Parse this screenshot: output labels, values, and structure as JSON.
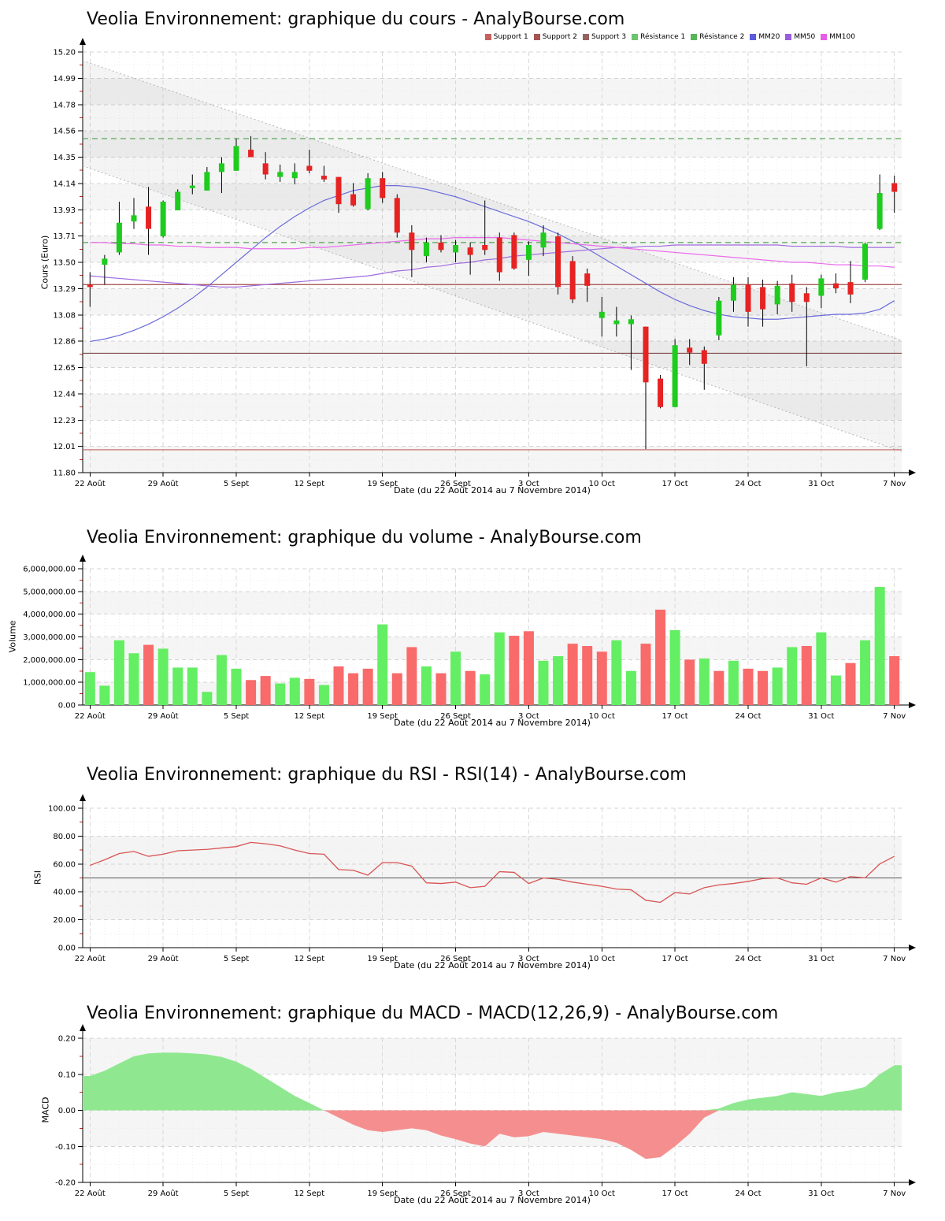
{
  "x_axis": {
    "label": "Date (du 22 Août 2014 au 7 Novembre 2014)",
    "tick_labels": [
      "22 Août",
      "29 Août",
      "5 Sept",
      "12 Sept",
      "19 Sept",
      "26 Sept",
      "3 Oct",
      "10 Oct",
      "17 Oct",
      "24 Oct",
      "31 Oct",
      "7 Nov"
    ],
    "tick_day_indices": [
      0,
      5,
      10,
      15,
      20,
      25,
      30,
      35,
      40,
      45,
      50,
      55
    ]
  },
  "chart_data": [
    {
      "type": "candlestick",
      "title": "Veolia Environnement: graphique du cours - AnalyBourse.com",
      "ylabel": "Cours (Euro)",
      "ylim": [
        11.8,
        15.2
      ],
      "y_tick_labels": [
        "15.20",
        "14.99",
        "14.78",
        "14.56",
        "14.35",
        "14.14",
        "13.93",
        "13.71",
        "13.50",
        "13.29",
        "13.08",
        "12.86",
        "12.65",
        "12.44",
        "12.23",
        "12.01",
        "11.80"
      ],
      "legend": [
        {
          "label": "Support 1",
          "color": "#c66060"
        },
        {
          "label": "Support 2",
          "color": "#a65454"
        },
        {
          "label": "Support 3",
          "color": "#966260"
        },
        {
          "label": "Résistance 1",
          "color": "#6cc56c"
        },
        {
          "label": "Résistance 2",
          "color": "#58b558"
        },
        {
          "label": "MM20",
          "color": "#5c5cdd"
        },
        {
          "label": "MM50",
          "color": "#9a5ce0"
        },
        {
          "label": "MM100",
          "color": "#e85ce8"
        }
      ],
      "dates": [
        "22/08",
        "25/08",
        "26/08",
        "27/08",
        "28/08",
        "29/08",
        "01/09",
        "02/09",
        "03/09",
        "04/09",
        "05/09",
        "08/09",
        "09/09",
        "10/09",
        "11/09",
        "12/09",
        "15/09",
        "16/09",
        "17/09",
        "18/09",
        "19/09",
        "22/09",
        "23/09",
        "24/09",
        "25/09",
        "26/09",
        "29/09",
        "30/09",
        "01/10",
        "02/10",
        "03/10",
        "06/10",
        "07/10",
        "08/10",
        "09/10",
        "10/10",
        "13/10",
        "14/10",
        "15/10",
        "16/10",
        "17/10",
        "20/10",
        "21/10",
        "22/10",
        "23/10",
        "24/10",
        "27/10",
        "28/10",
        "29/10",
        "30/10",
        "31/10",
        "03/11",
        "04/11",
        "05/11",
        "06/11",
        "07/11"
      ],
      "ohlc": [
        [
          13.32,
          13.42,
          13.14,
          13.3
        ],
        [
          13.48,
          13.56,
          13.32,
          13.53
        ],
        [
          13.58,
          13.99,
          13.56,
          13.82
        ],
        [
          13.83,
          14.02,
          13.77,
          13.88
        ],
        [
          13.95,
          14.11,
          13.56,
          13.77
        ],
        [
          13.71,
          14.0,
          13.7,
          13.99
        ],
        [
          13.92,
          14.09,
          13.92,
          14.07
        ],
        [
          14.1,
          14.21,
          14.05,
          14.12
        ],
        [
          14.08,
          14.27,
          14.08,
          14.23
        ],
        [
          14.23,
          14.35,
          14.06,
          14.3
        ],
        [
          14.24,
          14.5,
          14.24,
          14.44
        ],
        [
          14.41,
          14.52,
          14.35,
          14.35
        ],
        [
          14.3,
          14.39,
          14.17,
          14.21
        ],
        [
          14.19,
          14.29,
          14.15,
          14.23
        ],
        [
          14.18,
          14.3,
          14.13,
          14.23
        ],
        [
          14.28,
          14.41,
          14.22,
          14.24
        ],
        [
          14.2,
          14.28,
          14.15,
          14.17
        ],
        [
          14.19,
          14.19,
          13.9,
          13.97
        ],
        [
          14.05,
          14.14,
          13.95,
          13.96
        ],
        [
          13.93,
          14.22,
          13.92,
          14.18
        ],
        [
          14.18,
          14.23,
          13.98,
          14.02
        ],
        [
          14.02,
          14.05,
          13.7,
          13.74
        ],
        [
          13.74,
          13.8,
          13.38,
          13.6
        ],
        [
          13.55,
          13.7,
          13.5,
          13.66
        ],
        [
          13.66,
          13.72,
          13.58,
          13.6
        ],
        [
          13.58,
          13.68,
          13.5,
          13.64
        ],
        [
          13.62,
          13.66,
          13.4,
          13.56
        ],
        [
          13.64,
          14.0,
          13.56,
          13.6
        ],
        [
          13.7,
          13.74,
          13.35,
          13.42
        ],
        [
          13.72,
          13.74,
          13.44,
          13.45
        ],
        [
          13.52,
          13.67,
          13.39,
          13.64
        ],
        [
          13.62,
          13.8,
          13.55,
          13.74
        ],
        [
          13.71,
          13.74,
          13.24,
          13.3
        ],
        [
          13.51,
          13.55,
          13.17,
          13.2
        ],
        [
          13.41,
          13.45,
          13.18,
          13.31
        ],
        [
          13.05,
          13.22,
          12.9,
          13.1
        ],
        [
          13.0,
          13.14,
          12.9,
          13.03
        ],
        [
          13.0,
          13.07,
          12.63,
          13.04
        ],
        [
          12.98,
          12.98,
          11.99,
          12.53
        ],
        [
          12.56,
          12.59,
          12.32,
          12.33
        ],
        [
          12.33,
          12.88,
          12.33,
          12.83
        ],
        [
          12.81,
          12.88,
          12.67,
          12.77
        ],
        [
          12.79,
          12.82,
          12.47,
          12.68
        ],
        [
          12.91,
          13.22,
          12.87,
          13.19
        ],
        [
          13.19,
          13.38,
          13.1,
          13.32
        ],
        [
          13.32,
          13.38,
          12.98,
          13.1
        ],
        [
          13.3,
          13.36,
          12.98,
          13.12
        ],
        [
          13.16,
          13.35,
          13.08,
          13.31
        ],
        [
          13.33,
          13.4,
          13.1,
          13.18
        ],
        [
          13.25,
          13.3,
          12.66,
          13.18
        ],
        [
          13.23,
          13.4,
          13.13,
          13.37
        ],
        [
          13.33,
          13.41,
          13.25,
          13.29
        ],
        [
          13.34,
          13.51,
          13.17,
          13.24
        ],
        [
          13.36,
          13.66,
          13.34,
          13.65
        ],
        [
          13.77,
          14.21,
          13.76,
          14.06
        ],
        [
          14.14,
          14.2,
          13.9,
          14.07
        ]
      ],
      "mm20": [
        12.86,
        12.88,
        12.91,
        12.95,
        13.0,
        13.06,
        13.13,
        13.21,
        13.3,
        13.4,
        13.5,
        13.6,
        13.7,
        13.79,
        13.87,
        13.94,
        14.0,
        14.04,
        14.08,
        14.1,
        14.12,
        14.12,
        14.11,
        14.09,
        14.06,
        14.03,
        13.99,
        13.95,
        13.91,
        13.87,
        13.83,
        13.78,
        13.73,
        13.67,
        13.61,
        13.54,
        13.47,
        13.4,
        13.33,
        13.26,
        13.2,
        13.15,
        13.11,
        13.08,
        13.06,
        13.05,
        13.04,
        13.04,
        13.05,
        13.06,
        13.07,
        13.08,
        13.08,
        13.09,
        13.12,
        13.19
      ],
      "mm50": [
        13.39,
        13.38,
        13.37,
        13.36,
        13.35,
        13.34,
        13.33,
        13.32,
        13.31,
        13.3,
        13.3,
        13.31,
        13.32,
        13.33,
        13.34,
        13.35,
        13.36,
        13.37,
        13.38,
        13.39,
        13.41,
        13.43,
        13.44,
        13.46,
        13.47,
        13.49,
        13.5,
        13.52,
        13.53,
        13.55,
        13.56,
        13.57,
        13.58,
        13.59,
        13.6,
        13.61,
        13.62,
        13.62,
        13.63,
        13.63,
        13.64,
        13.64,
        13.64,
        13.64,
        13.64,
        13.64,
        13.64,
        13.64,
        13.63,
        13.63,
        13.63,
        13.63,
        13.62,
        13.62,
        13.62,
        13.62
      ],
      "mm100": [
        13.66,
        13.66,
        13.65,
        13.65,
        13.64,
        13.64,
        13.63,
        13.63,
        13.62,
        13.62,
        13.62,
        13.61,
        13.61,
        13.61,
        13.61,
        13.62,
        13.62,
        13.63,
        13.64,
        13.65,
        13.66,
        13.67,
        13.68,
        13.69,
        13.69,
        13.7,
        13.7,
        13.7,
        13.7,
        13.69,
        13.68,
        13.67,
        13.66,
        13.65,
        13.64,
        13.63,
        13.62,
        13.61,
        13.6,
        13.59,
        13.58,
        13.57,
        13.56,
        13.55,
        13.54,
        13.53,
        13.52,
        13.51,
        13.5,
        13.5,
        13.49,
        13.48,
        13.48,
        13.47,
        13.47,
        13.46
      ],
      "levels": {
        "support1": 13.32,
        "support2": 12.765,
        "support3": 11.985,
        "resistance1": 13.66,
        "resistance2": 14.5
      },
      "channel": {
        "upper": [
          15.13,
          12.87
        ],
        "lower": [
          14.28,
          11.97
        ]
      },
      "colors": {
        "up": "#1ecc1e",
        "down": "#e62222",
        "wick": "#000000",
        "mm20": "#6b6bdc",
        "mm50": "#a06be0",
        "mm100": "#ec6bec",
        "support1": "#a04a4a",
        "support2": "#7d4646",
        "support3": "#c46262",
        "resistance": "#4ea54e"
      }
    },
    {
      "type": "bar",
      "title": "Veolia Environnement: graphique du volume - AnalyBourse.com",
      "ylabel": "Volume",
      "ylim": [
        0,
        6000000
      ],
      "y_tick_labels": [
        "6,000,000.00",
        "5,000,000.00",
        "4,000,000.00",
        "3,000,000.00",
        "2,000,000.00",
        "1,000,000.00",
        "0.00"
      ],
      "values": [
        1450000,
        850000,
        2850000,
        2280000,
        2650000,
        2480000,
        1650000,
        1650000,
        580000,
        2200000,
        1600000,
        1100000,
        1280000,
        950000,
        1200000,
        1150000,
        880000,
        1700000,
        1400000,
        1600000,
        3550000,
        1400000,
        2550000,
        1700000,
        1400000,
        2350000,
        1500000,
        1350000,
        3200000,
        3050000,
        3250000,
        1950000,
        2150000,
        2700000,
        2600000,
        2350000,
        2850000,
        1500000,
        2700000,
        4200000,
        3300000,
        2000000,
        2050000,
        1500000,
        1950000,
        1600000,
        1500000,
        1650000,
        2550000,
        2600000,
        3200000,
        1300000,
        1850000,
        2850000,
        5200000,
        2150000
      ],
      "directions": [
        "up",
        "up",
        "up",
        "up",
        "down",
        "up",
        "up",
        "up",
        "up",
        "up",
        "up",
        "down",
        "down",
        "up",
        "up",
        "down",
        "up",
        "down",
        "down",
        "down",
        "up",
        "down",
        "down",
        "up",
        "down",
        "up",
        "down",
        "up",
        "up",
        "down",
        "down",
        "up",
        "up",
        "down",
        "down",
        "down",
        "up",
        "up",
        "down",
        "down",
        "up",
        "down",
        "up",
        "down",
        "up",
        "down",
        "down",
        "up",
        "up",
        "down",
        "up",
        "up",
        "down",
        "up",
        "up",
        "down"
      ],
      "colors": {
        "up": "#63ee63",
        "down": "#f96a6a"
      }
    },
    {
      "type": "line",
      "title": "Veolia Environnement: graphique du RSI - RSI(14) - AnalyBourse.com",
      "ylabel": "RSI",
      "ylim": [
        0,
        100
      ],
      "y_tick_labels": [
        "100.00",
        "80.00",
        "60.00",
        "40.00",
        "20.00",
        "0.00"
      ],
      "values": [
        59,
        63,
        67.5,
        69,
        65.5,
        67,
        69.5,
        70,
        70.5,
        71.5,
        72.5,
        75.5,
        74.5,
        73,
        70,
        67.5,
        67,
        56,
        55.5,
        52,
        61,
        61,
        58.5,
        46.5,
        46,
        47,
        43,
        44,
        54.5,
        54,
        46,
        50,
        49,
        47,
        45.5,
        44,
        42,
        41.5,
        34,
        32.5,
        39.5,
        38.5,
        43,
        45,
        46,
        47.5,
        49.5,
        50,
        46.5,
        45.5,
        50,
        47,
        51,
        50,
        60,
        65.5
      ],
      "center_line": 50,
      "shaded_band": [
        20,
        80
      ],
      "colors": {
        "line": "#d95454",
        "center": "#555555"
      }
    },
    {
      "type": "area",
      "title": "Veolia Environnement: graphique du MACD - MACD(12,26,9) - AnalyBourse.com",
      "ylabel": "MACD",
      "ylim": [
        -0.2,
        0.2
      ],
      "y_tick_labels": [
        "0.20",
        "0.10",
        "0.00",
        "-0.10",
        "-0.20"
      ],
      "values": [
        0.095,
        0.11,
        0.13,
        0.15,
        0.158,
        0.16,
        0.16,
        0.158,
        0.155,
        0.148,
        0.135,
        0.115,
        0.09,
        0.065,
        0.04,
        0.02,
        0,
        -0.02,
        -0.04,
        -0.055,
        -0.06,
        -0.055,
        -0.05,
        -0.055,
        -0.07,
        -0.08,
        -0.092,
        -0.1,
        -0.065,
        -0.075,
        -0.072,
        -0.06,
        -0.065,
        -0.07,
        -0.075,
        -0.08,
        -0.09,
        -0.11,
        -0.135,
        -0.13,
        -0.1,
        -0.065,
        -0.02,
        0.005,
        0.02,
        0.03,
        0.035,
        0.04,
        0.05,
        0.045,
        0.04,
        0.05,
        0.055,
        0.065,
        0.1,
        0.125
      ],
      "colors": {
        "positive": "#8fe88f",
        "negative": "#f58f8f"
      }
    }
  ]
}
